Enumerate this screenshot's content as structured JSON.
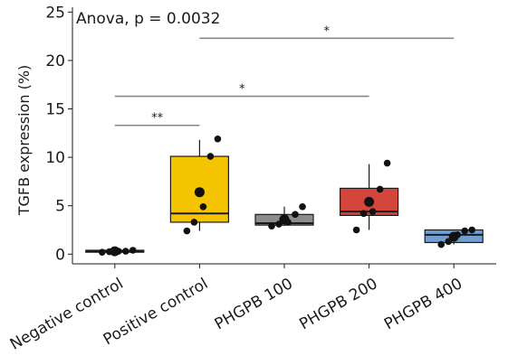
{
  "chart_data": {
    "type": "box",
    "ylabel": "TGFB expression (%)",
    "annotation": "Anova, p = 0.0032",
    "ylim": [
      -1,
      25.5
    ],
    "yticks": [
      0,
      5,
      10,
      15,
      20,
      25
    ],
    "categories": [
      "Negative control",
      "Positive control",
      "PHGPB 100",
      "PHGPB 200",
      "PHGPB 400"
    ],
    "boxes": [
      {
        "category": "Negative control",
        "color": "#e6e6e6",
        "q1": 0.2,
        "median": 0.3,
        "q3": 0.4,
        "whisker_low": 0.2,
        "whisker_high": 0.4,
        "mean": 0.3,
        "points": [
          0.2,
          0.25,
          0.3,
          0.3,
          0.4
        ]
      },
      {
        "category": "Positive control",
        "color": "#f5c400",
        "q1": 3.3,
        "median": 4.2,
        "q3": 10.1,
        "whisker_low": 2.4,
        "whisker_high": 11.8,
        "mean": 6.4,
        "points": [
          2.4,
          3.3,
          4.9,
          10.1,
          11.9
        ]
      },
      {
        "category": "PHGPB 100",
        "color": "#8c8c8c",
        "q1": 3.0,
        "median": 3.2,
        "q3": 4.1,
        "whisker_low": 2.9,
        "whisker_high": 4.9,
        "mean": 3.6,
        "points": [
          2.9,
          3.1,
          3.3,
          4.1,
          4.9
        ]
      },
      {
        "category": "PHGPB 200",
        "color": "#d4453c",
        "q1": 4.0,
        "median": 4.4,
        "q3": 6.8,
        "whisker_low": 2.5,
        "whisker_high": 9.3,
        "mean": 5.4,
        "points": [
          2.5,
          4.2,
          4.4,
          6.7,
          9.4
        ]
      },
      {
        "category": "PHGPB 400",
        "color": "#6f9fd6",
        "q1": 1.2,
        "median": 2.0,
        "q3": 2.5,
        "whisker_low": 1.0,
        "whisker_high": 2.5,
        "mean": 1.8,
        "points": [
          1.0,
          1.3,
          2.0,
          2.4,
          2.5
        ]
      }
    ],
    "significance": [
      {
        "from": "Negative control",
        "to": "Positive control",
        "y": 13.3,
        "label": "**"
      },
      {
        "from": "Negative control",
        "to": "PHGPB 200",
        "y": 16.3,
        "label": "*"
      },
      {
        "from": "Positive control",
        "to": "PHGPB 400",
        "y": 22.3,
        "label": "*"
      }
    ],
    "grid": false,
    "legend": "none"
  }
}
